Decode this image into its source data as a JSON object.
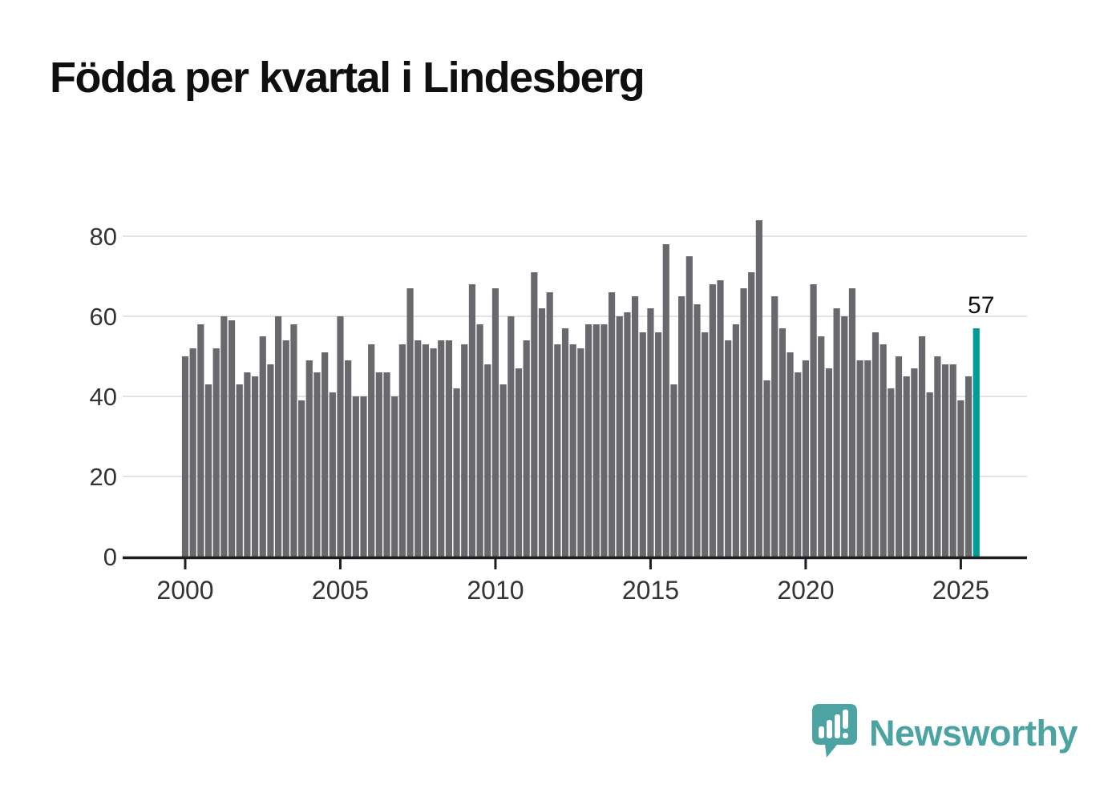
{
  "title": "Födda per kvartal i Lindesberg",
  "annotation": {
    "highlight_value_label": "57"
  },
  "branding": {
    "name": "Newsworthy",
    "icon": "newsworthy-speech-bubble-chart-icon"
  },
  "colors": {
    "bar": "#69696d",
    "highlight_bar": "#009b94",
    "gridline": "#e3e3e3",
    "axis_line": "#1e1e1e",
    "tick_label": "#333333",
    "title_text": "#0f0f0f",
    "annotation_text": "#111111",
    "logo_teal": "#4ba4a1",
    "logo_glyph": "#ffffff",
    "background": "#ffffff"
  },
  "chart_data": {
    "type": "bar",
    "title": "Födda per kvartal i Lindesberg",
    "x_unit": "quarter",
    "start_period": "2000-Q1",
    "end_period": "2025-Q3",
    "xlabel": "",
    "ylabel": "",
    "ylim": [
      0,
      87
    ],
    "grid": true,
    "y_ticks": [
      0,
      20,
      40,
      60,
      80
    ],
    "x_tick_labels": [
      "2000",
      "2005",
      "2010",
      "2015",
      "2020",
      "2025"
    ],
    "highlight_last_bar": true,
    "highlight_value": 57,
    "values": [
      50,
      52,
      58,
      43,
      52,
      60,
      59,
      43,
      46,
      45,
      55,
      48,
      60,
      54,
      58,
      39,
      49,
      46,
      51,
      41,
      60,
      49,
      40,
      40,
      53,
      46,
      46,
      40,
      53,
      67,
      54,
      53,
      52,
      54,
      54,
      42,
      53,
      68,
      58,
      48,
      67,
      43,
      60,
      47,
      54,
      71,
      62,
      66,
      53,
      57,
      53,
      52,
      58,
      58,
      58,
      66,
      60,
      61,
      65,
      56,
      62,
      56,
      78,
      43,
      65,
      75,
      63,
      56,
      68,
      69,
      54,
      58,
      67,
      71,
      84,
      44,
      65,
      57,
      51,
      46,
      49,
      68,
      55,
      47,
      62,
      60,
      67,
      49,
      49,
      56,
      53,
      42,
      50,
      45,
      47,
      55,
      41,
      50,
      48,
      48,
      39,
      45,
      57
    ]
  }
}
